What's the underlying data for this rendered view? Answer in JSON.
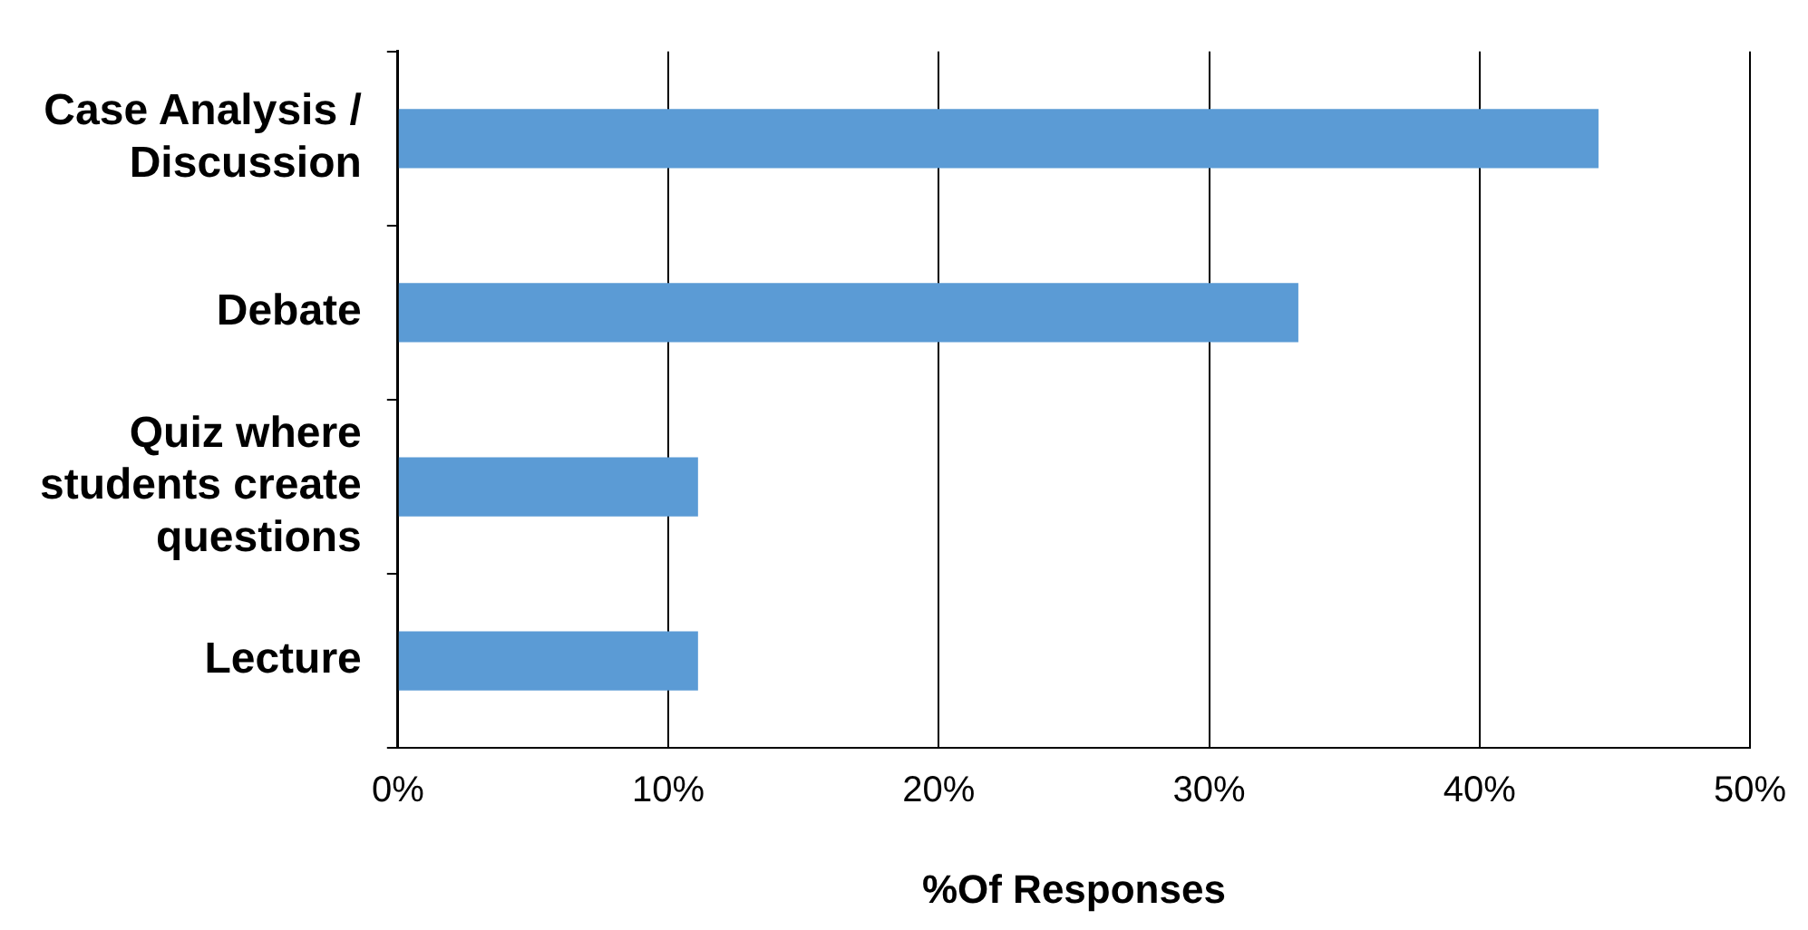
{
  "chart_data": {
    "type": "bar",
    "orientation": "horizontal",
    "xlabel": "%Of Responses",
    "categories": [
      "Case Analysis / Discussion",
      "Debate",
      "Quiz where students create questions",
      "Lecture"
    ],
    "values": [
      44.4,
      33.3,
      11.1,
      11.1
    ],
    "color": "#5b9bd5",
    "xlim": [
      0,
      50
    ],
    "xticks": [
      {
        "value": 0,
        "label": "0%"
      },
      {
        "value": 10,
        "label": "10%"
      },
      {
        "value": 20,
        "label": "20%"
      },
      {
        "value": 30,
        "label": "30%"
      },
      {
        "value": 40,
        "label": "40%"
      },
      {
        "value": 50,
        "label": "50%"
      }
    ],
    "grid": "x",
    "legend": false
  }
}
